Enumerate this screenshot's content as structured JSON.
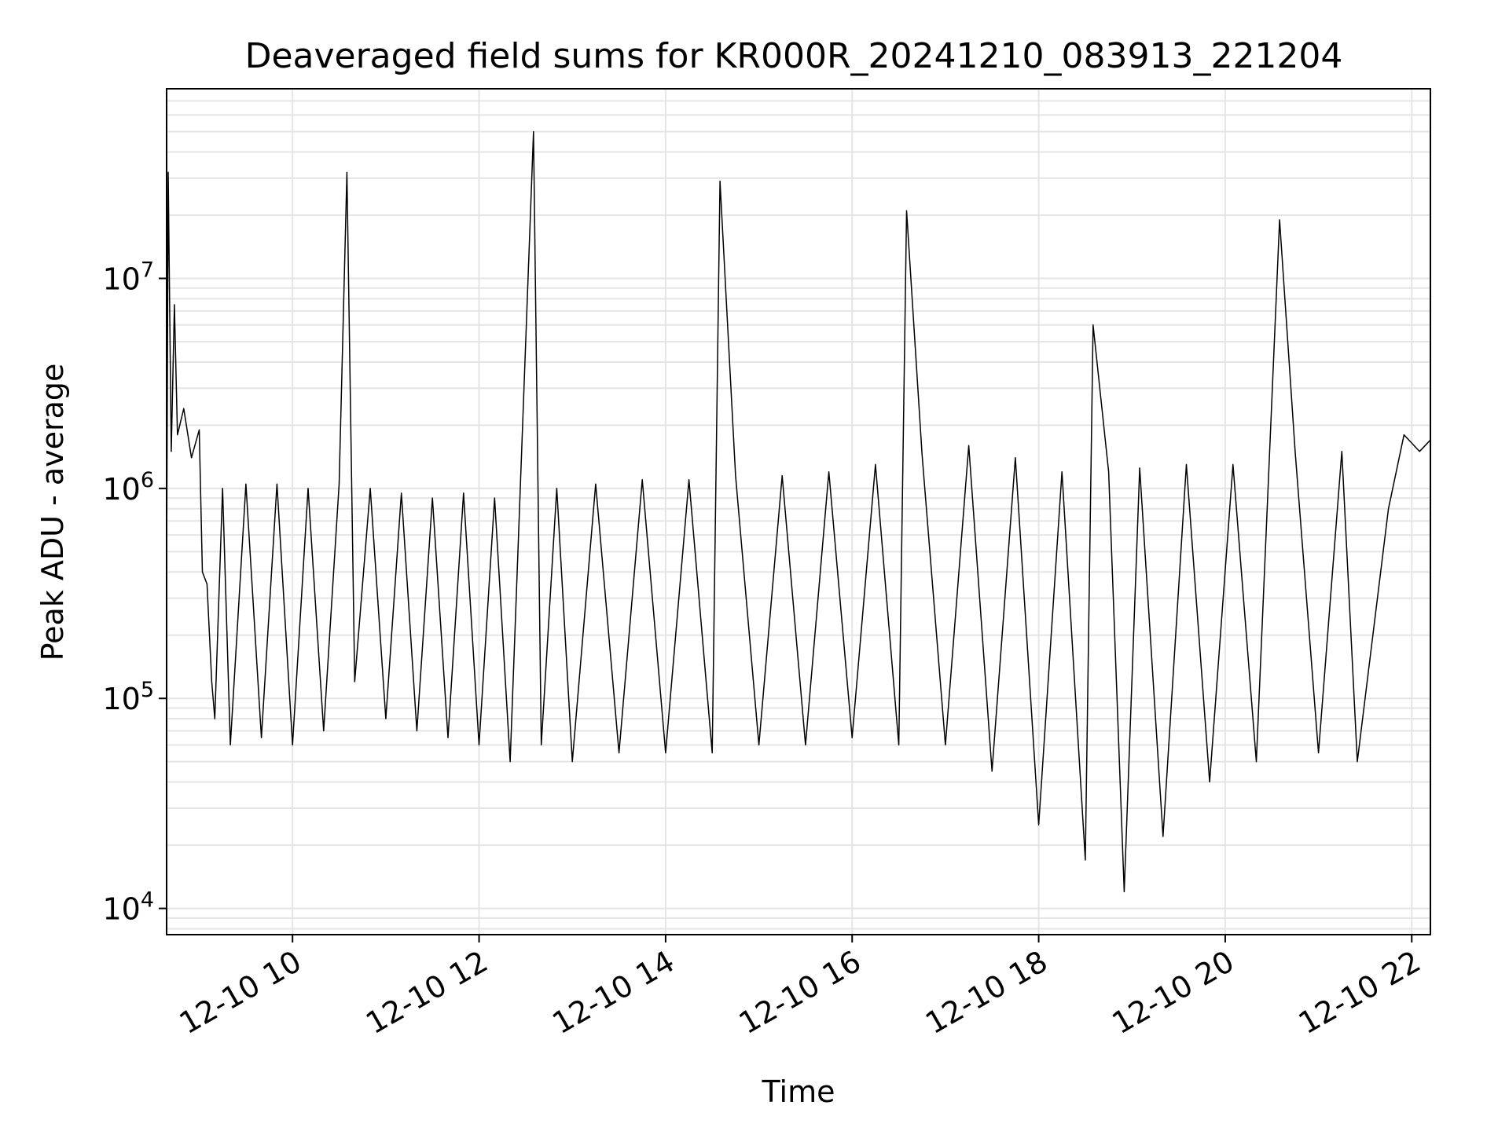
{
  "chart_data": {
    "type": "line",
    "title": "Deaveraged field sums for KR000R_20241210_083913_221204",
    "xlabel": "Time",
    "ylabel": "Peak ADU - average",
    "yscale": "log",
    "grid": true,
    "line_color": "#000000",
    "grid_color": "#e5e5e5",
    "x_tick_labels": [
      "12-10 10",
      "12-10 12",
      "12-10 14",
      "12-10 16",
      "12-10 18",
      "12-10 20",
      "12-10 22"
    ],
    "x_tick_values": [
      "2024-12-10 10:00",
      "2024-12-10 12:00",
      "2024-12-10 14:00",
      "2024-12-10 16:00",
      "2024-12-10 18:00",
      "2024-12-10 20:00",
      "2024-12-10 22:00"
    ],
    "xlim": [
      "2024-12-10 08:39",
      "2024-12-10 22:12"
    ],
    "y_ticks": [
      {
        "base": "10",
        "exp": "4",
        "value": 10000
      },
      {
        "base": "10",
        "exp": "5",
        "value": 100000
      },
      {
        "base": "10",
        "exp": "6",
        "value": 1000000
      },
      {
        "base": "10",
        "exp": "7",
        "value": 10000000
      }
    ],
    "ylim": [
      7500,
      80000000
    ],
    "series": [
      {
        "points": [
          [
            "2024-12-10 08:39",
            400000
          ],
          [
            "2024-12-10 08:40",
            32000000
          ],
          [
            "2024-12-10 08:42",
            1500000
          ],
          [
            "2024-12-10 08:44",
            7500000
          ],
          [
            "2024-12-10 08:46",
            1800000
          ],
          [
            "2024-12-10 08:50",
            2400000
          ],
          [
            "2024-12-10 08:55",
            1400000
          ],
          [
            "2024-12-10 09:00",
            1900000
          ],
          [
            "2024-12-10 09:02",
            400000
          ],
          [
            "2024-12-10 09:05",
            350000
          ],
          [
            "2024-12-10 09:08",
            120000
          ],
          [
            "2024-12-10 09:10",
            80000
          ],
          [
            "2024-12-10 09:15",
            1000000
          ],
          [
            "2024-12-10 09:20",
            60000
          ],
          [
            "2024-12-10 09:30",
            1050000
          ],
          [
            "2024-12-10 09:40",
            65000
          ],
          [
            "2024-12-10 09:50",
            1050000
          ],
          [
            "2024-12-10 10:00",
            60000
          ],
          [
            "2024-12-10 10:10",
            1000000
          ],
          [
            "2024-12-10 10:20",
            70000
          ],
          [
            "2024-12-10 10:30",
            1050000
          ],
          [
            "2024-12-10 10:35",
            32000000
          ],
          [
            "2024-12-10 10:40",
            120000
          ],
          [
            "2024-12-10 10:50",
            1000000
          ],
          [
            "2024-12-10 11:00",
            80000
          ],
          [
            "2024-12-10 11:10",
            950000
          ],
          [
            "2024-12-10 11:20",
            70000
          ],
          [
            "2024-12-10 11:30",
            900000
          ],
          [
            "2024-12-10 11:40",
            65000
          ],
          [
            "2024-12-10 11:50",
            950000
          ],
          [
            "2024-12-10 12:00",
            60000
          ],
          [
            "2024-12-10 12:10",
            900000
          ],
          [
            "2024-12-10 12:20",
            50000
          ],
          [
            "2024-12-10 12:35",
            50000000
          ],
          [
            "2024-12-10 12:40",
            60000
          ],
          [
            "2024-12-10 12:50",
            1000000
          ],
          [
            "2024-12-10 13:00",
            50000
          ],
          [
            "2024-12-10 13:15",
            1050000
          ],
          [
            "2024-12-10 13:30",
            55000
          ],
          [
            "2024-12-10 13:45",
            1100000
          ],
          [
            "2024-12-10 14:00",
            55000
          ],
          [
            "2024-12-10 14:15",
            1100000
          ],
          [
            "2024-12-10 14:30",
            55000
          ],
          [
            "2024-12-10 14:35",
            29000000
          ],
          [
            "2024-12-10 14:45",
            1150000
          ],
          [
            "2024-12-10 15:00",
            60000
          ],
          [
            "2024-12-10 15:15",
            1150000
          ],
          [
            "2024-12-10 15:30",
            60000
          ],
          [
            "2024-12-10 15:45",
            1200000
          ],
          [
            "2024-12-10 16:00",
            65000
          ],
          [
            "2024-12-10 16:15",
            1300000
          ],
          [
            "2024-12-10 16:30",
            60000
          ],
          [
            "2024-12-10 16:35",
            21000000
          ],
          [
            "2024-12-10 16:45",
            1450000
          ],
          [
            "2024-12-10 17:00",
            60000
          ],
          [
            "2024-12-10 17:15",
            1600000
          ],
          [
            "2024-12-10 17:30",
            45000
          ],
          [
            "2024-12-10 17:45",
            1400000
          ],
          [
            "2024-12-10 18:00",
            25000
          ],
          [
            "2024-12-10 18:15",
            1200000
          ],
          [
            "2024-12-10 18:30",
            17000
          ],
          [
            "2024-12-10 18:35",
            6000000
          ],
          [
            "2024-12-10 18:45",
            1200000
          ],
          [
            "2024-12-10 18:55",
            12000
          ],
          [
            "2024-12-10 19:05",
            1250000
          ],
          [
            "2024-12-10 19:20",
            22000
          ],
          [
            "2024-12-10 19:35",
            1300000
          ],
          [
            "2024-12-10 19:50",
            40000
          ],
          [
            "2024-12-10 20:05",
            1300000
          ],
          [
            "2024-12-10 20:20",
            50000
          ],
          [
            "2024-12-10 20:35",
            19000000
          ],
          [
            "2024-12-10 20:45",
            1500000
          ],
          [
            "2024-12-10 21:00",
            55000
          ],
          [
            "2024-12-10 21:15",
            1500000
          ],
          [
            "2024-12-10 21:25",
            50000
          ],
          [
            "2024-12-10 21:35",
            200000
          ],
          [
            "2024-12-10 21:45",
            800000
          ],
          [
            "2024-12-10 21:55",
            1800000
          ],
          [
            "2024-12-10 22:05",
            1500000
          ],
          [
            "2024-12-10 22:12",
            1700000
          ]
        ]
      }
    ]
  }
}
